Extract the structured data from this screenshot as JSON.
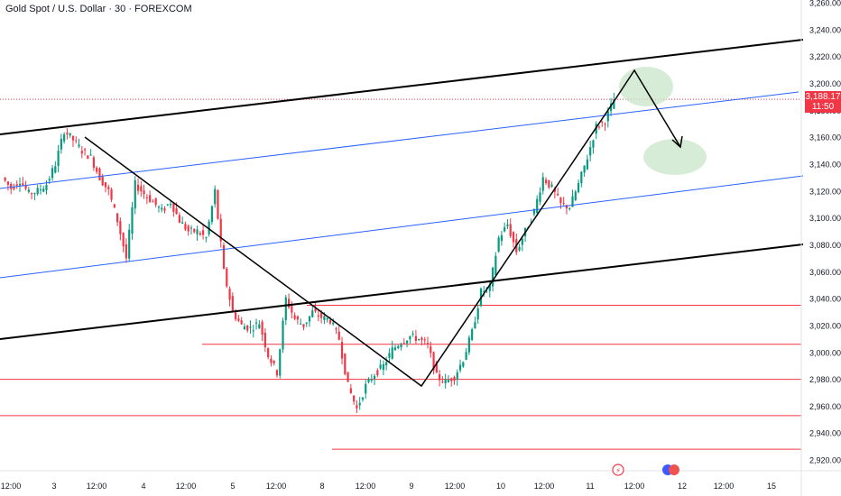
{
  "header": {
    "title": "Gold Spot / U.S. Dollar · 30 · FOREXCOM"
  },
  "last_price": {
    "value": "3,188.17",
    "countdown": "11:50"
  },
  "colors": {
    "up": "#089981",
    "down": "#f23645",
    "trend": "#000000",
    "channel": "#2962ff",
    "support": "#f23645",
    "target": "#c8e6c9"
  },
  "chart_data": {
    "type": "candlestick",
    "y_axis": {
      "ticks": [
        "3,260.00",
        "3,240.00",
        "3,220.00",
        "3,200.00",
        "3,180.00",
        "3,160.00",
        "3,140.00",
        "3,120.00",
        "3,100.00",
        "3,080.00",
        "3,060.00",
        "3,040.00",
        "3,020.00",
        "3,000.00",
        "2,980.00",
        "2,960.00",
        "2,940.00",
        "2,920.00"
      ],
      "range": [
        2912,
        3262
      ]
    },
    "x_axis": {
      "ticks": [
        "12:00",
        "3",
        "12:00",
        "4",
        "12:00",
        "5",
        "12:00",
        "8",
        "12:00",
        "9",
        "12:00",
        "10",
        "12:00",
        "11",
        "12:00",
        "12",
        "12:00",
        "15"
      ]
    },
    "price_path": [
      3130,
      3122,
      3128,
      3118,
      3120,
      3125,
      3140,
      3165,
      3158,
      3150,
      3145,
      3130,
      3120,
      3098,
      3070,
      3125,
      3118,
      3112,
      3105,
      3112,
      3098,
      3090,
      3090,
      3085,
      3120,
      3060,
      3030,
      3020,
      3018,
      3022,
      2998,
      2985,
      3040,
      3025,
      3020,
      3030,
      3026,
      3024,
      3010,
      2975,
      2958,
      2975,
      2984,
      2990,
      3002,
      3008,
      3012,
      3010,
      3005,
      2982,
      2978,
      2982,
      2995,
      3015,
      3045,
      3048,
      3085,
      3095,
      3075,
      3090,
      3105,
      3130,
      3122,
      3110,
      3108,
      3125,
      3145,
      3168,
      3172,
      3188
    ],
    "support_levels": [
      3035,
      3006,
      2980,
      2953,
      2928
    ],
    "annotations": [
      "ascending channel",
      "projected move up then down",
      "target zones"
    ]
  }
}
